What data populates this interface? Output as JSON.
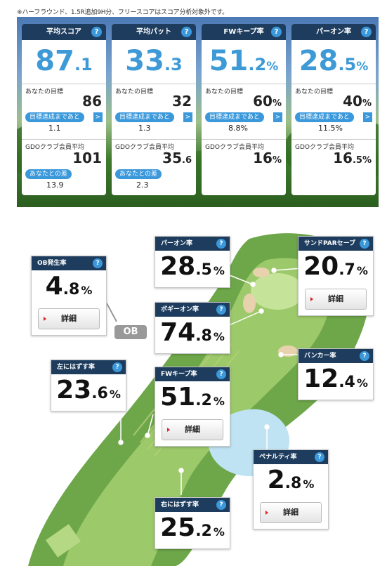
{
  "note": "※ハーフラウンド、1.5R追加9H分、フリースコアはスコア分析対象外です。",
  "cards": [
    {
      "title": "平均スコア",
      "big_int": "87",
      "big_dec": ".1",
      "unit": "",
      "target_label": "あなたの目標",
      "target_int": "86",
      "target_dec": "",
      "pill": "目標達成まであと",
      "remain": "1.1",
      "avg_label": "GDOクラブ会員平均",
      "avg_int": "101",
      "avg_dec": "",
      "diff_label": "あなたとの差",
      "diff": "13.9"
    },
    {
      "title": "平均パット",
      "big_int": "33",
      "big_dec": ".3",
      "unit": "",
      "target_label": "あなたの目標",
      "target_int": "32",
      "target_dec": "",
      "pill": "目標達成まであと",
      "remain": "1.3",
      "avg_label": "GDOクラブ会員平均",
      "avg_int": "35",
      "avg_dec": ".6",
      "diff_label": "あなたとの差",
      "diff": "2.3"
    },
    {
      "title": "FWキープ率",
      "big_int": "51",
      "big_dec": ".2",
      "unit": "%",
      "target_label": "あなたの目標",
      "target_int": "60",
      "target_dec": "%",
      "pill": "目標達成まであと",
      "remain": "8.8%",
      "avg_label": "GDOクラブ会員平均",
      "avg_int": "16",
      "avg_dec": "%",
      "diff_label": "",
      "diff": ""
    },
    {
      "title": "パーオン率",
      "big_int": "28",
      "big_dec": ".5",
      "unit": "%",
      "target_label": "あなたの目標",
      "target_int": "40",
      "target_dec": "%",
      "pill": "目標達成まであと",
      "remain": "11.5%",
      "avg_label": "GDOクラブ会員平均",
      "avg_int": "16",
      "avg_dec": ".5%",
      "diff_label": "",
      "diff": ""
    }
  ],
  "help": "?",
  "arrow": ">",
  "stats": {
    "parOn": {
      "title": "パーオン率",
      "int": "28",
      "dec": ".5",
      "unit": "%"
    },
    "sandSave": {
      "title": "サンドPARセーブ",
      "int": "20",
      "dec": ".7",
      "unit": "%",
      "detail": "詳細"
    },
    "ob": {
      "title": "OB発生率",
      "int": "4",
      "dec": ".8",
      "unit": "%",
      "detail": "詳細"
    },
    "bogeyOn": {
      "title": "ボギーオン率",
      "int": "74",
      "dec": ".8",
      "unit": "%"
    },
    "bunker": {
      "title": "バンカー率",
      "int": "12",
      "dec": ".4",
      "unit": "%"
    },
    "left": {
      "title": "左にはずす率",
      "int": "23",
      "dec": ".6",
      "unit": "%"
    },
    "fwKeep": {
      "title": "FWキープ率",
      "int": "51",
      "dec": ".2",
      "unit": "%",
      "detail": "詳細"
    },
    "penalty": {
      "title": "ペナルティ率",
      "int": "2",
      "dec": ".8",
      "unit": "%",
      "detail": "詳細"
    },
    "right": {
      "title": "右にはずす率",
      "int": "25",
      "dec": ".2",
      "unit": "%"
    }
  },
  "ob_tag": "OB"
}
